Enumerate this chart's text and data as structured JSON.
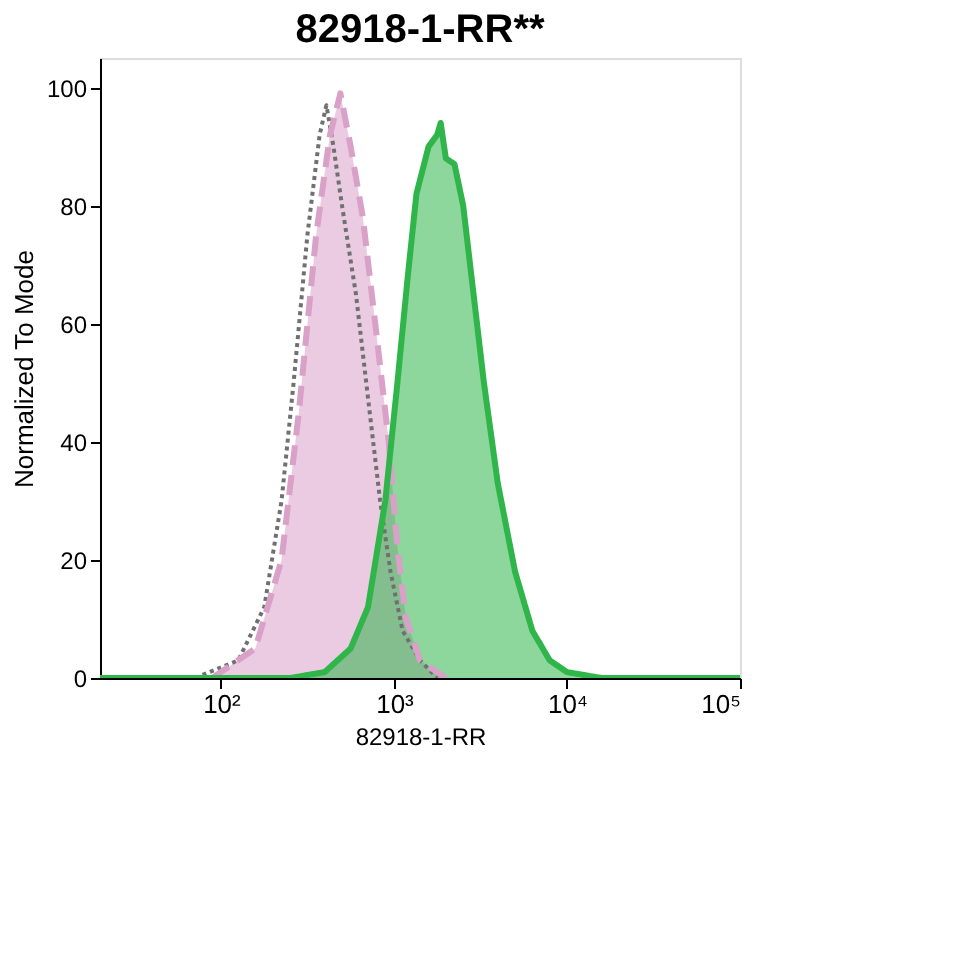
{
  "chart_data": {
    "type": "area",
    "title": "82918-1-RR**",
    "xlabel": "82918-1-RR",
    "ylabel": "Normalized To Mode",
    "log": "x",
    "xlim": [
      20,
      100000
    ],
    "ylim": [
      0,
      105
    ],
    "xticks": [
      {
        "value": 100,
        "label": "10²"
      },
      {
        "value": 1000,
        "label": "10³"
      },
      {
        "value": 10000,
        "label": "10⁴"
      },
      {
        "value": 100000,
        "label": "10⁵"
      }
    ],
    "yticks": [
      0,
      20,
      40,
      60,
      80,
      100
    ],
    "grid": false,
    "series": [
      {
        "type": "line",
        "line_style": "dotted",
        "color": "#707070",
        "x": [
          71,
          126,
          178,
          224,
          263,
          316,
          372,
          407,
          447,
          501,
          603,
          724,
          832,
          955,
          1122,
          1413,
          1778
        ],
        "values": [
          0,
          3,
          12,
          30,
          50,
          75,
          92,
          97,
          90,
          80,
          65,
          45,
          30,
          18,
          8,
          3,
          0
        ]
      },
      {
        "type": "area",
        "line_style": "dashed",
        "color": "#d9a0c8",
        "x": [
          89,
          158,
          224,
          282,
          355,
          427,
          490,
          562,
          661,
          794,
          933,
          1047,
          1175,
          1413,
          1995
        ],
        "values": [
          0,
          5,
          20,
          45,
          75,
          92,
          99,
          90,
          78,
          58,
          40,
          22,
          10,
          3,
          0
        ]
      },
      {
        "type": "area",
        "line_style": "solid",
        "color": "#2fb54a",
        "x": [
          20,
          251,
          398,
          562,
          708,
          891,
          1047,
          1202,
          1349,
          1585,
          1778,
          1862,
          1995,
          2239,
          2512,
          2884,
          3311,
          3981,
          5012,
          6310,
          7943,
          10000,
          15849,
          100000
        ],
        "values": [
          0,
          0,
          1,
          5,
          12,
          30,
          50,
          68,
          82,
          90,
          92,
          94,
          88,
          87,
          80,
          65,
          50,
          33,
          18,
          8,
          3,
          1,
          0,
          0
        ]
      }
    ]
  }
}
